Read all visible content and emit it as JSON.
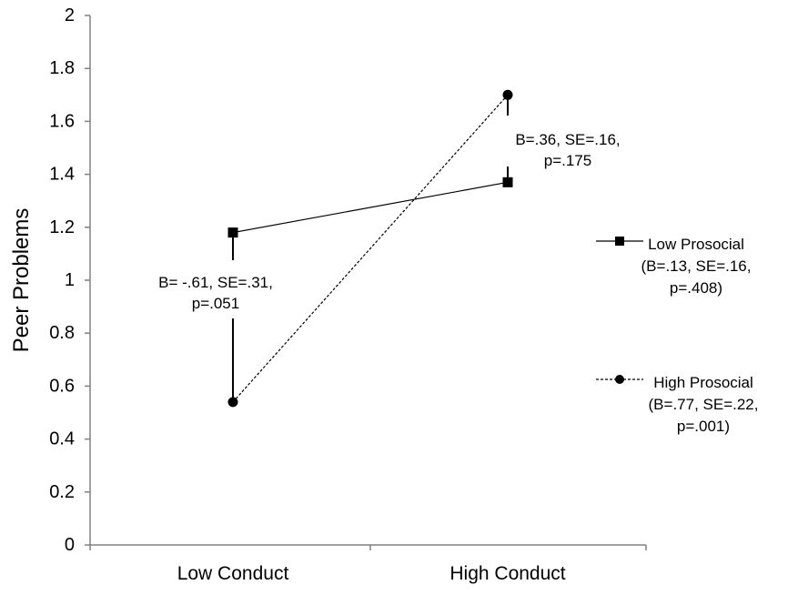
{
  "chart_data": {
    "type": "line",
    "title": "",
    "xlabel": "",
    "ylabel": "Peer Problems",
    "ylim": [
      0,
      2
    ],
    "yticks": [
      0,
      0.2,
      0.4,
      0.6,
      0.8,
      1,
      1.2,
      1.4,
      1.6,
      1.8,
      2
    ],
    "ytick_labels": [
      "0",
      "0.2",
      "0.4",
      "0.6",
      "0.8",
      "1",
      "1.2",
      "1.4",
      "1.6",
      "1.8",
      "2"
    ],
    "categories": [
      "Low Conduct",
      "High Conduct"
    ],
    "grid": false,
    "legend_position": "right",
    "series": [
      {
        "name": "Low Prosocial",
        "legend_lines": [
          "Low Prosocial",
          "(B=.13, SE=.16,",
          "p=.408)"
        ],
        "values": [
          1.18,
          1.37
        ],
        "marker": "square",
        "line_style": "solid",
        "color": "#000000"
      },
      {
        "name": "High Prosocial",
        "legend_lines": [
          "High Prosocial",
          "(B=.77, SE=.22,",
          "p=.001)"
        ],
        "values": [
          0.54,
          1.7
        ],
        "marker": "circle",
        "line_style": "dashed",
        "color": "#000000"
      }
    ],
    "annotations": [
      {
        "category_index": 0,
        "lines": [
          "B= -.61, SE=.31,",
          "p=.051"
        ]
      },
      {
        "category_index": 1,
        "lines": [
          "B=.36, SE=.16,",
          "p=.175"
        ]
      }
    ]
  }
}
